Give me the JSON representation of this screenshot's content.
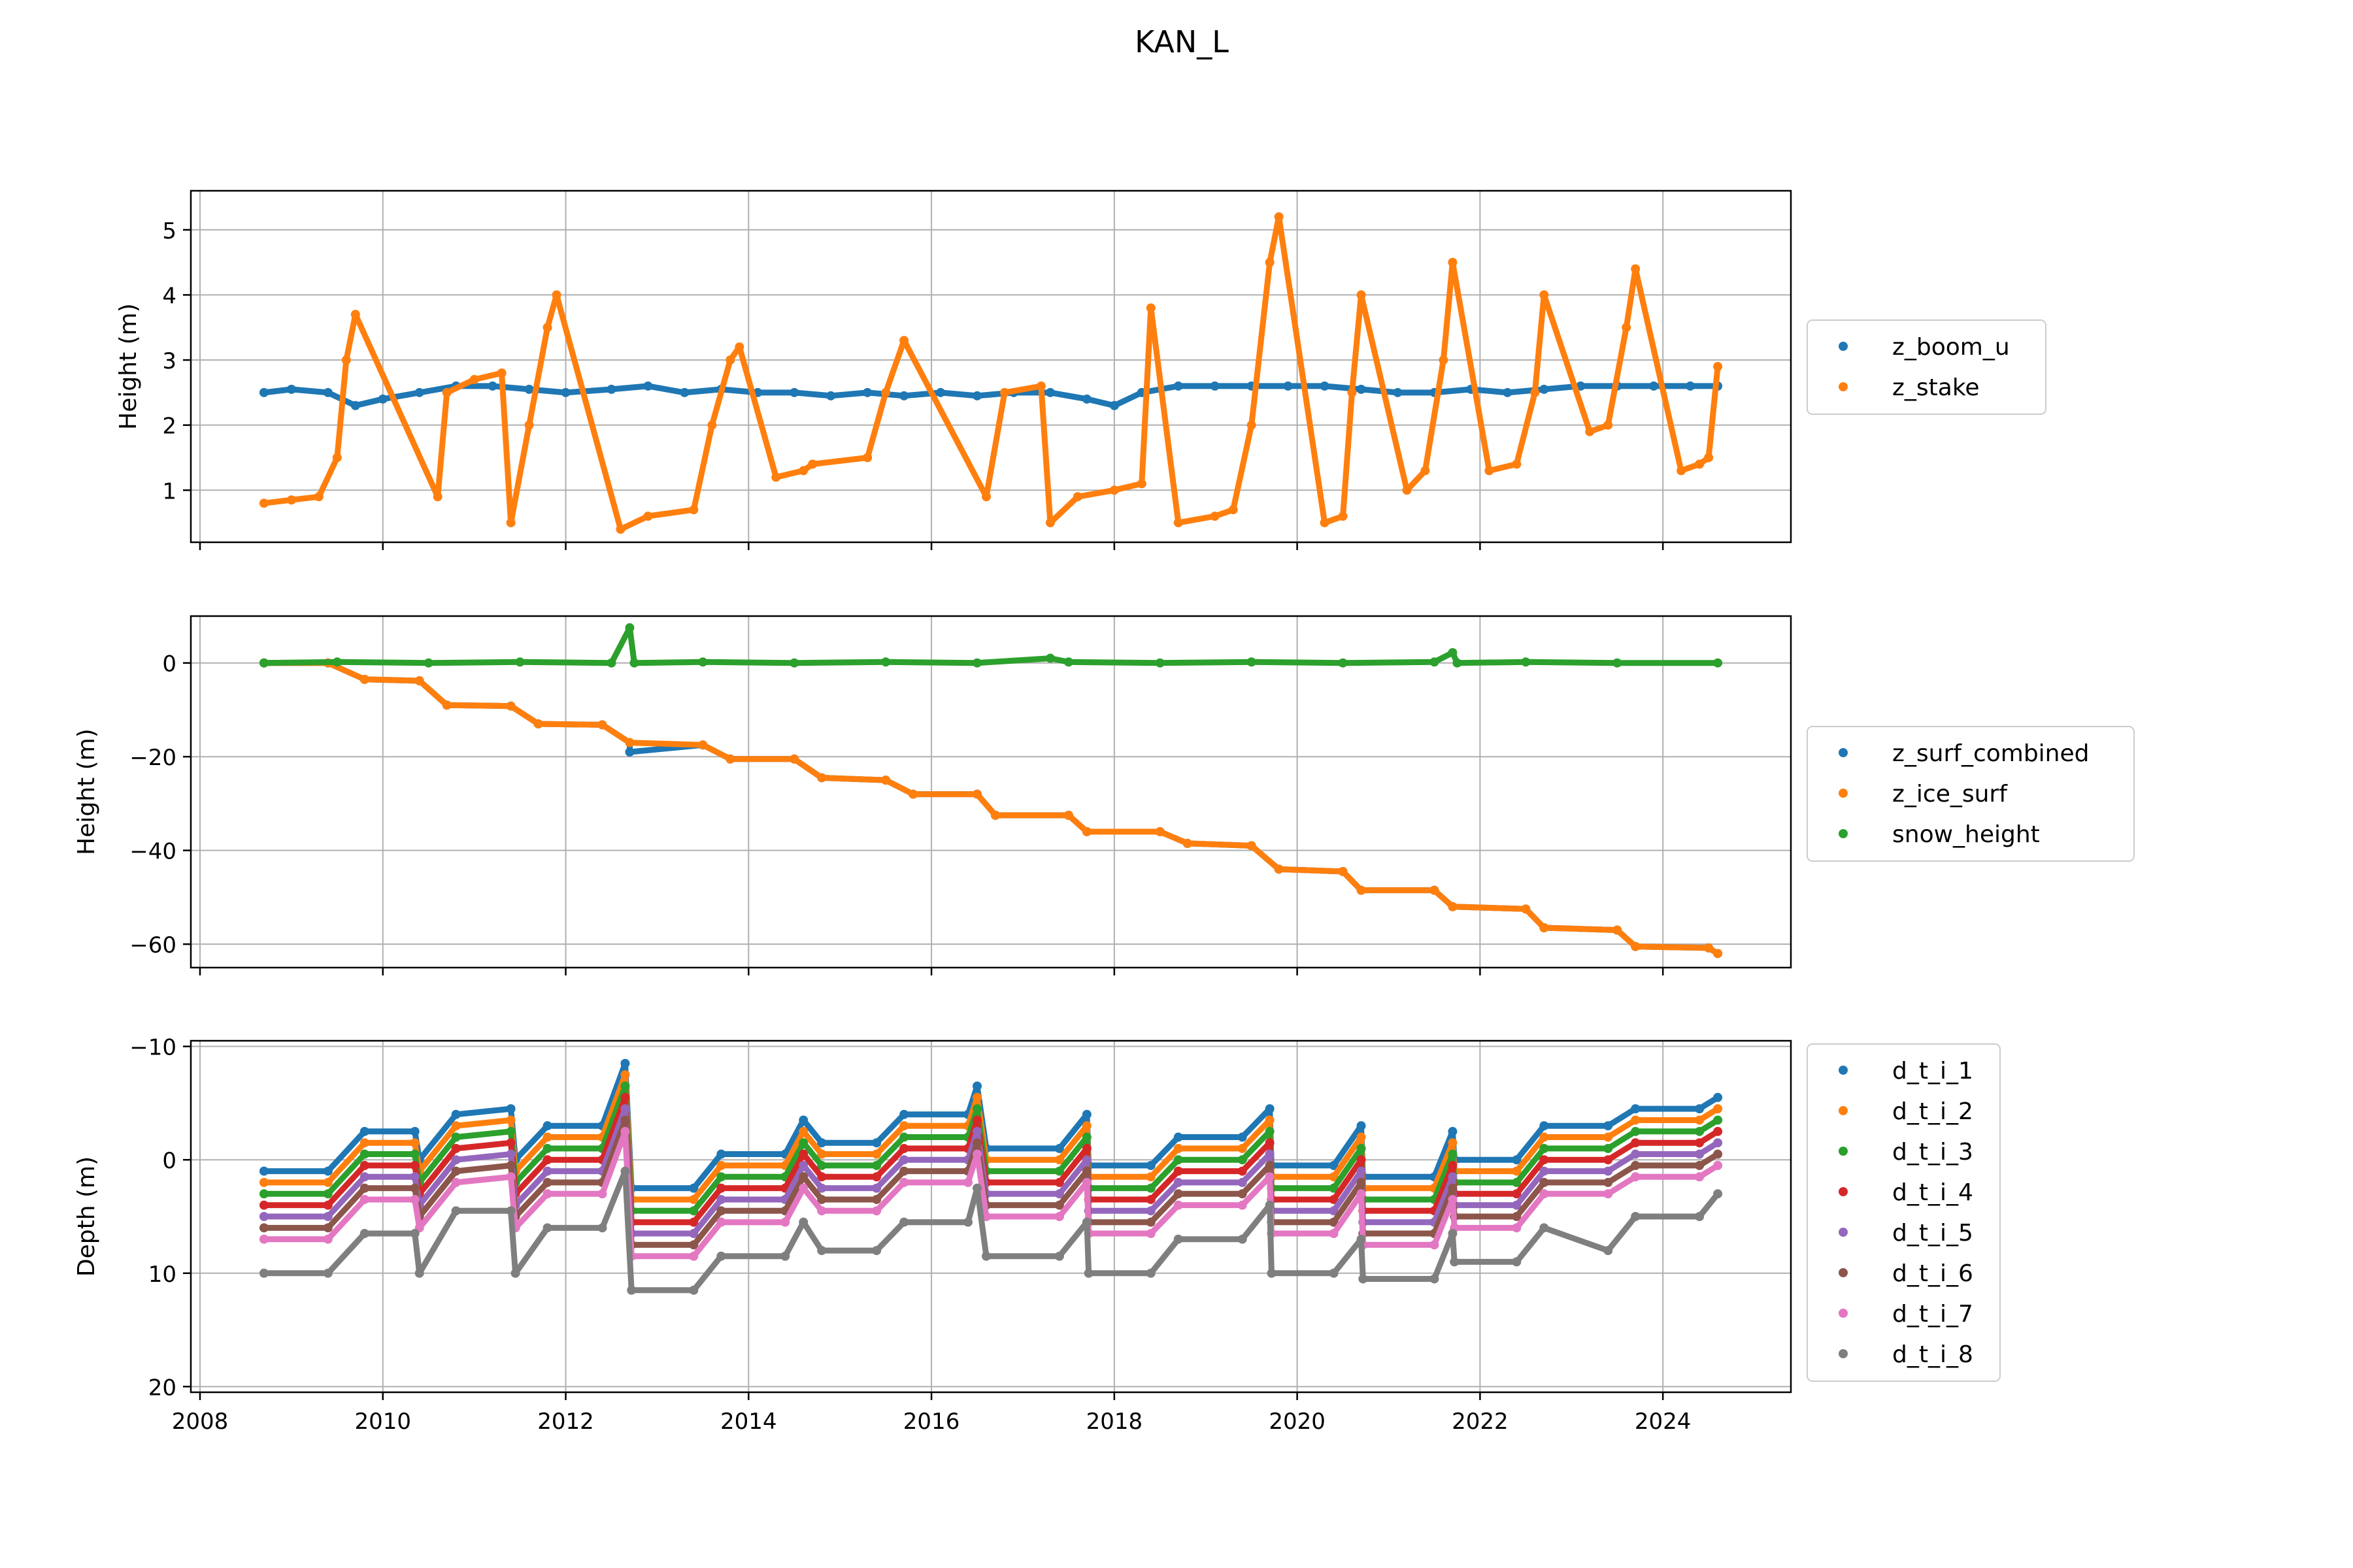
{
  "figure": {
    "title": "KAN_L"
  },
  "chart_data": [
    {
      "type": "scatter",
      "panel": "top",
      "ylabel": "Height (m)",
      "xlabel": "",
      "xlim": [
        2007.9,
        2025.4
      ],
      "ylim": [
        0.2,
        5.6
      ],
      "yticks": [
        1,
        2,
        3,
        4,
        5
      ],
      "ytick_labels": [
        "1",
        "2",
        "3",
        "4",
        "5"
      ],
      "grid": true,
      "legend_position": "right",
      "series": [
        {
          "name": "z_boom_u",
          "color": "#1f77b4",
          "x": [
            2008.7,
            2009.0,
            2009.4,
            2009.7,
            2010.0,
            2010.4,
            2010.8,
            2011.2,
            2011.6,
            2012.0,
            2012.5,
            2012.9,
            2013.3,
            2013.7,
            2014.1,
            2014.5,
            2014.9,
            2015.3,
            2015.7,
            2016.1,
            2016.5,
            2016.9,
            2017.3,
            2017.7,
            2018.0,
            2018.3,
            2018.7,
            2019.1,
            2019.5,
            2019.9,
            2020.3,
            2020.7,
            2021.1,
            2021.5,
            2021.9,
            2022.3,
            2022.7,
            2023.1,
            2023.5,
            2023.9,
            2024.3,
            2024.6
          ],
          "y": [
            2.5,
            2.55,
            2.5,
            2.3,
            2.4,
            2.5,
            2.6,
            2.6,
            2.55,
            2.5,
            2.55,
            2.6,
            2.5,
            2.55,
            2.5,
            2.5,
            2.45,
            2.5,
            2.45,
            2.5,
            2.45,
            2.5,
            2.5,
            2.4,
            2.3,
            2.5,
            2.6,
            2.6,
            2.6,
            2.6,
            2.6,
            2.55,
            2.5,
            2.5,
            2.55,
            2.5,
            2.55,
            2.6,
            2.6,
            2.6,
            2.6,
            2.6
          ]
        },
        {
          "name": "z_stake",
          "color": "#ff7f0e",
          "x": [
            2008.7,
            2009.0,
            2009.3,
            2009.5,
            2009.6,
            2009.7,
            2010.6,
            2010.7,
            2011.0,
            2011.3,
            2011.4,
            2011.6,
            2011.8,
            2011.9,
            2012.6,
            2012.9,
            2013.4,
            2013.6,
            2013.8,
            2013.9,
            2014.3,
            2014.6,
            2014.7,
            2015.3,
            2015.5,
            2015.7,
            2016.6,
            2016.8,
            2017.2,
            2017.3,
            2017.6,
            2018.0,
            2018.3,
            2018.4,
            2018.7,
            2019.1,
            2019.3,
            2019.5,
            2019.7,
            2019.8,
            2020.3,
            2020.5,
            2020.6,
            2020.7,
            2021.2,
            2021.4,
            2021.6,
            2021.7,
            2022.1,
            2022.4,
            2022.6,
            2022.7,
            2023.2,
            2023.4,
            2023.6,
            2023.7,
            2024.2,
            2024.4,
            2024.5,
            2024.6
          ],
          "y": [
            0.8,
            0.85,
            0.9,
            1.5,
            3.0,
            3.7,
            0.9,
            2.5,
            2.7,
            2.8,
            0.5,
            2.0,
            3.5,
            4.0,
            0.4,
            0.6,
            0.7,
            2.0,
            3.0,
            3.2,
            1.2,
            1.3,
            1.4,
            1.5,
            2.5,
            3.3,
            0.9,
            2.5,
            2.6,
            0.5,
            0.9,
            1.0,
            1.1,
            3.8,
            0.5,
            0.6,
            0.7,
            2.0,
            4.5,
            5.2,
            0.5,
            0.6,
            2.5,
            4.0,
            1.0,
            1.3,
            3.0,
            4.5,
            1.3,
            1.4,
            2.5,
            4.0,
            1.9,
            2.0,
            3.5,
            4.4,
            1.3,
            1.4,
            1.5,
            2.9
          ]
        }
      ]
    },
    {
      "type": "scatter",
      "panel": "middle",
      "ylabel": "Height (m)",
      "xlabel": "",
      "xlim": [
        2007.9,
        2025.4
      ],
      "ylim": [
        -65,
        10
      ],
      "yticks": [
        0,
        -20,
        -40,
        -60
      ],
      "ytick_labels": [
        "0",
        "−20",
        "−40",
        "−60"
      ],
      "grid": true,
      "legend_position": "right",
      "series": [
        {
          "name": "z_surf_combined",
          "color": "#1f77b4",
          "x": [
            2008.7,
            2009.4,
            2009.8,
            2010.4,
            2010.7,
            2011.4,
            2011.7,
            2012.4,
            2012.7,
            2012.7,
            2013.5,
            2013.8,
            2014.5,
            2014.8,
            2015.5,
            2015.8,
            2016.5,
            2016.7,
            2017.5,
            2017.7,
            2018.5,
            2018.8,
            2019.5,
            2019.8,
            2020.5,
            2020.7,
            2021.5,
            2021.7,
            2022.5,
            2022.7,
            2023.5,
            2023.7,
            2024.5,
            2024.6
          ],
          "y": [
            0,
            0,
            -3.5,
            -3.8,
            -9,
            -9.2,
            -13,
            -13.2,
            -17,
            -19,
            -17.5,
            -20.5,
            -20.5,
            -24.5,
            -25,
            -28,
            -28,
            -32.5,
            -32.5,
            -36,
            -36,
            -38.5,
            -39,
            -44,
            -44.5,
            -48.5,
            -48.5,
            -52,
            -52.5,
            -56.5,
            -57,
            -60.5,
            -60.8,
            -62
          ]
        },
        {
          "name": "z_ice_surf",
          "color": "#ff7f0e",
          "x": [
            2008.7,
            2009.4,
            2009.8,
            2010.4,
            2010.7,
            2011.4,
            2011.7,
            2012.4,
            2012.7,
            2013.5,
            2013.8,
            2014.5,
            2014.8,
            2015.5,
            2015.8,
            2016.5,
            2016.7,
            2017.5,
            2017.7,
            2018.5,
            2018.8,
            2019.5,
            2019.8,
            2020.5,
            2020.7,
            2021.5,
            2021.7,
            2022.5,
            2022.7,
            2023.5,
            2023.7,
            2024.5,
            2024.6
          ],
          "y": [
            0,
            0,
            -3.5,
            -3.8,
            -9,
            -9.2,
            -13,
            -13.2,
            -17,
            -17.5,
            -20.5,
            -20.5,
            -24.5,
            -25,
            -28,
            -28,
            -32.5,
            -32.5,
            -36,
            -36,
            -38.5,
            -39,
            -44,
            -44.5,
            -48.5,
            -48.5,
            -52,
            -52.5,
            -56.5,
            -57,
            -60.5,
            -60.8,
            -62
          ]
        },
        {
          "name": "snow_height",
          "color": "#2ca02c",
          "x": [
            2008.7,
            2009.5,
            2010.5,
            2011.5,
            2012.5,
            2012.7,
            2012.75,
            2013.5,
            2014.5,
            2015.5,
            2016.5,
            2017.3,
            2017.5,
            2018.5,
            2019.5,
            2020.5,
            2021.5,
            2021.7,
            2021.75,
            2022.5,
            2023.5,
            2024.6
          ],
          "y": [
            0,
            0.2,
            0,
            0.2,
            0,
            7.5,
            0,
            0.2,
            0,
            0.2,
            0,
            1.0,
            0.2,
            0,
            0.2,
            0,
            0.2,
            2.2,
            0,
            0.2,
            0,
            0
          ]
        }
      ]
    },
    {
      "type": "scatter",
      "panel": "bottom",
      "ylabel": "Depth (m)",
      "xlabel": "",
      "xlim": [
        2007.9,
        2025.4
      ],
      "ylim": [
        20.5,
        -10.5
      ],
      "y_inverted": true,
      "yticks": [
        -10,
        0,
        10,
        20
      ],
      "ytick_labels": [
        "−10",
        "0",
        "10",
        "20"
      ],
      "xticks": [
        2008,
        2010,
        2012,
        2014,
        2016,
        2018,
        2020,
        2022,
        2024
      ],
      "xtick_labels": [
        "2008",
        "2010",
        "2012",
        "2014",
        "2016",
        "2018",
        "2020",
        "2022",
        "2024"
      ],
      "grid": true,
      "legend_position": "right",
      "x": [
        2008.7,
        2009.4,
        2009.8,
        2010.35,
        2010.4,
        2010.8,
        2011.4,
        2011.45,
        2011.8,
        2012.4,
        2012.65,
        2012.72,
        2013.4,
        2013.7,
        2014.4,
        2014.6,
        2014.8,
        2015.4,
        2015.7,
        2016.4,
        2016.5,
        2016.6,
        2017.4,
        2017.7,
        2017.72,
        2018.4,
        2018.7,
        2019.4,
        2019.7,
        2019.72,
        2020.4,
        2020.7,
        2020.72,
        2021.5,
        2021.7,
        2021.72,
        2022.4,
        2022.7,
        2023.4,
        2023.7,
        2024.4,
        2024.6
      ],
      "series": [
        {
          "name": "d_t_i_1",
          "color": "#1f77b4",
          "y": [
            1,
            1,
            -2.5,
            -2.5,
            0,
            -4,
            -4.5,
            0,
            -3,
            -3,
            -8.5,
            2.5,
            2.5,
            -0.5,
            -0.5,
            -3.5,
            -1.5,
            -1.5,
            -4,
            -4,
            -6.5,
            -1,
            -1,
            -4,
            0.5,
            0.5,
            -2,
            -2,
            -4.5,
            0.5,
            0.5,
            -3,
            1.5,
            1.5,
            -2.5,
            0,
            0,
            -3,
            -3,
            -4.5,
            -4.5,
            -5.5
          ]
        },
        {
          "name": "d_t_i_2",
          "color": "#ff7f0e",
          "y": [
            2,
            2,
            -1.5,
            -1.5,
            1,
            -3,
            -3.5,
            1,
            -2,
            -2,
            -7.5,
            3.5,
            3.5,
            0.5,
            0.5,
            -2.5,
            -0.5,
            -0.5,
            -3,
            -3,
            -5.5,
            0,
            0,
            -3,
            1.5,
            1.5,
            -1,
            -1,
            -3.5,
            1.5,
            1.5,
            -2,
            2.5,
            2.5,
            -1.5,
            1,
            1,
            -2,
            -2,
            -3.5,
            -3.5,
            -4.5
          ]
        },
        {
          "name": "d_t_i_3",
          "color": "#2ca02c",
          "y": [
            3,
            3,
            -0.5,
            -0.5,
            2,
            -2,
            -2.5,
            2,
            -1,
            -1,
            -6.5,
            4.5,
            4.5,
            1.5,
            1.5,
            -1.5,
            0.5,
            0.5,
            -2,
            -2,
            -4.5,
            1,
            1,
            -2,
            2.5,
            2.5,
            0,
            0,
            -2.5,
            2.5,
            2.5,
            -1,
            3.5,
            3.5,
            -0.5,
            2,
            2,
            -1,
            -1,
            -2.5,
            -2.5,
            -3.5
          ]
        },
        {
          "name": "d_t_i_4",
          "color": "#d62728",
          "y": [
            4,
            4,
            0.5,
            0.5,
            3,
            -1,
            -1.5,
            3,
            0,
            0,
            -5.5,
            5.5,
            5.5,
            2.5,
            2.5,
            -0.5,
            1.5,
            1.5,
            -1,
            -1,
            -3.5,
            2,
            2,
            -1,
            3.5,
            3.5,
            1,
            1,
            -1.5,
            3.5,
            3.5,
            0,
            4.5,
            4.5,
            0.5,
            3,
            3,
            0,
            0,
            -1.5,
            -1.5,
            -2.5
          ]
        },
        {
          "name": "d_t_i_5",
          "color": "#9467bd",
          "y": [
            5,
            5,
            1.5,
            1.5,
            4,
            0,
            -0.5,
            4,
            1,
            1,
            -4.5,
            6.5,
            6.5,
            3.5,
            3.5,
            0.5,
            2.5,
            2.5,
            0,
            0,
            -2.5,
            3,
            3,
            0,
            4.5,
            4.5,
            2,
            2,
            -0.5,
            4.5,
            4.5,
            1,
            5.5,
            5.5,
            1.5,
            4,
            4,
            1,
            1,
            -0.5,
            -0.5,
            -1.5
          ]
        },
        {
          "name": "d_t_i_6",
          "color": "#8c564b",
          "y": [
            6,
            6,
            2.5,
            2.5,
            5,
            1,
            0.5,
            5,
            2,
            2,
            -3.5,
            7.5,
            7.5,
            4.5,
            4.5,
            1.5,
            3.5,
            3.5,
            1,
            1,
            -1.5,
            4,
            4,
            1,
            5.5,
            5.5,
            3,
            3,
            0.5,
            5.5,
            5.5,
            2,
            6.5,
            6.5,
            2.5,
            5,
            5,
            2,
            2,
            0.5,
            0.5,
            -0.5
          ]
        },
        {
          "name": "d_t_i_7",
          "color": "#e377c2",
          "y": [
            7,
            7,
            3.5,
            3.5,
            6,
            2,
            1.5,
            6,
            3,
            3,
            -2.5,
            8.5,
            8.5,
            5.5,
            5.5,
            2.5,
            4.5,
            4.5,
            2,
            2,
            -0.5,
            5,
            5,
            2,
            6.5,
            6.5,
            4,
            4,
            1.5,
            6.5,
            6.5,
            3,
            7.5,
            7.5,
            3.5,
            6,
            6,
            3,
            3,
            1.5,
            1.5,
            0.5
          ]
        },
        {
          "name": "d_t_i_8",
          "color": "#7f7f7f",
          "y": [
            10,
            10,
            6.5,
            6.5,
            10,
            4.5,
            4.5,
            10,
            6,
            6,
            1,
            11.5,
            11.5,
            8.5,
            8.5,
            5.5,
            8,
            8,
            5.5,
            5.5,
            2.5,
            8.5,
            8.5,
            5.5,
            10,
            10,
            7,
            7,
            4,
            10,
            10,
            7,
            10.5,
            10.5,
            6.5,
            9,
            9,
            6,
            8,
            5,
            5,
            3
          ]
        }
      ]
    }
  ]
}
